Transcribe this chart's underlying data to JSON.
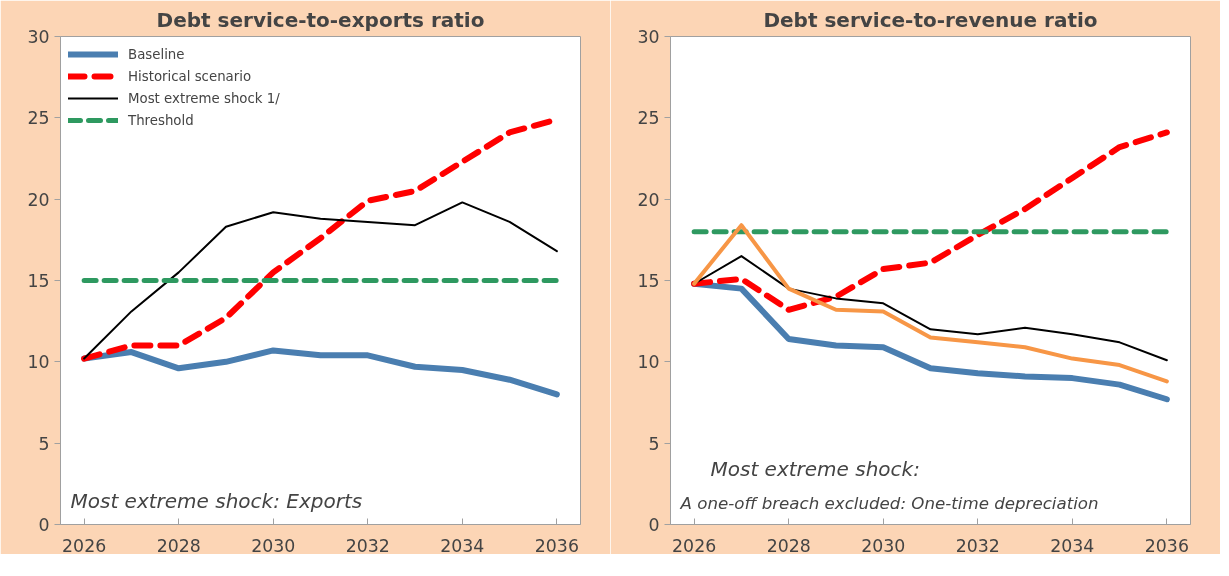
{
  "chart_data": [
    {
      "type": "line",
      "title": "Debt service-to-exports ratio",
      "x": [
        2026,
        2027,
        2028,
        2029,
        2030,
        2031,
        2032,
        2033,
        2034,
        2035,
        2036
      ],
      "xlim": [
        2025.5,
        2036.5
      ],
      "xticks": [
        2026,
        2028,
        2030,
        2032,
        2034,
        2036
      ],
      "ylim": [
        0,
        30
      ],
      "yticks": [
        0,
        5,
        10,
        15,
        20,
        25,
        30
      ],
      "grid": false,
      "legend": "top left",
      "annotations": [
        "Most extreme shock: Exports"
      ],
      "series": [
        {
          "name": "Baseline",
          "color": "#4a7eb0",
          "line_style": "solid",
          "values": [
            10.2,
            10.6,
            9.6,
            10.0,
            10.7,
            10.4,
            10.4,
            9.7,
            9.5,
            8.9,
            8.0
          ]
        },
        {
          "name": "Historical scenario",
          "color": "#ff0000",
          "line_style": "dashed",
          "values": [
            10.2,
            11.0,
            11.0,
            12.7,
            15.5,
            17.6,
            19.9,
            20.5,
            22.3,
            24.1,
            24.9
          ]
        },
        {
          "name": "Most extreme shock 1/",
          "color": "#000000",
          "line_style": "solid",
          "values": [
            10.2,
            13.1,
            15.5,
            18.3,
            19.2,
            18.8,
            18.6,
            18.4,
            19.8,
            18.6,
            16.8
          ]
        },
        {
          "name": "Threshold",
          "color": "#2e9960",
          "line_style": "dashed",
          "values": [
            15,
            15,
            15,
            15,
            15,
            15,
            15,
            15,
            15,
            15,
            15
          ]
        }
      ]
    },
    {
      "type": "line",
      "title": "Debt service-to-revenue ratio",
      "x": [
        2026,
        2027,
        2028,
        2029,
        2030,
        2031,
        2032,
        2033,
        2034,
        2035,
        2036
      ],
      "xlim": [
        2025.5,
        2036.5
      ],
      "xticks": [
        2026,
        2028,
        2030,
        2032,
        2034,
        2036
      ],
      "ylim": [
        0,
        30
      ],
      "yticks": [
        0,
        5,
        10,
        15,
        20,
        25,
        30
      ],
      "grid": false,
      "annotations": [
        "Most extreme shock:",
        "A one-off breach excluded: One-time depreciation"
      ],
      "series": [
        {
          "color": "#4a7eb0",
          "line_style": "solid",
          "values": [
            14.8,
            14.5,
            11.4,
            11.0,
            10.9,
            9.6,
            9.3,
            9.1,
            9.0,
            8.6,
            7.7
          ]
        },
        {
          "color": "#ff0000",
          "line_style": "dashed",
          "values": [
            14.8,
            15.1,
            13.2,
            14.0,
            15.7,
            16.1,
            17.8,
            19.4,
            21.3,
            23.2,
            24.1
          ]
        },
        {
          "color": "#000000",
          "line_style": "solid",
          "values": [
            14.8,
            16.5,
            14.5,
            13.9,
            13.6,
            12.0,
            11.7,
            12.1,
            11.7,
            11.2,
            10.1
          ]
        },
        {
          "color": "#2e9960",
          "line_style": "dashed",
          "values": [
            18,
            18,
            18,
            18,
            18,
            18,
            18,
            18,
            18,
            18,
            18
          ]
        },
        {
          "color": "#f79646",
          "line_style": "solid",
          "values": [
            14.8,
            18.4,
            14.5,
            13.2,
            13.1,
            11.5,
            11.2,
            10.9,
            10.2,
            9.8,
            8.8
          ]
        }
      ]
    }
  ]
}
